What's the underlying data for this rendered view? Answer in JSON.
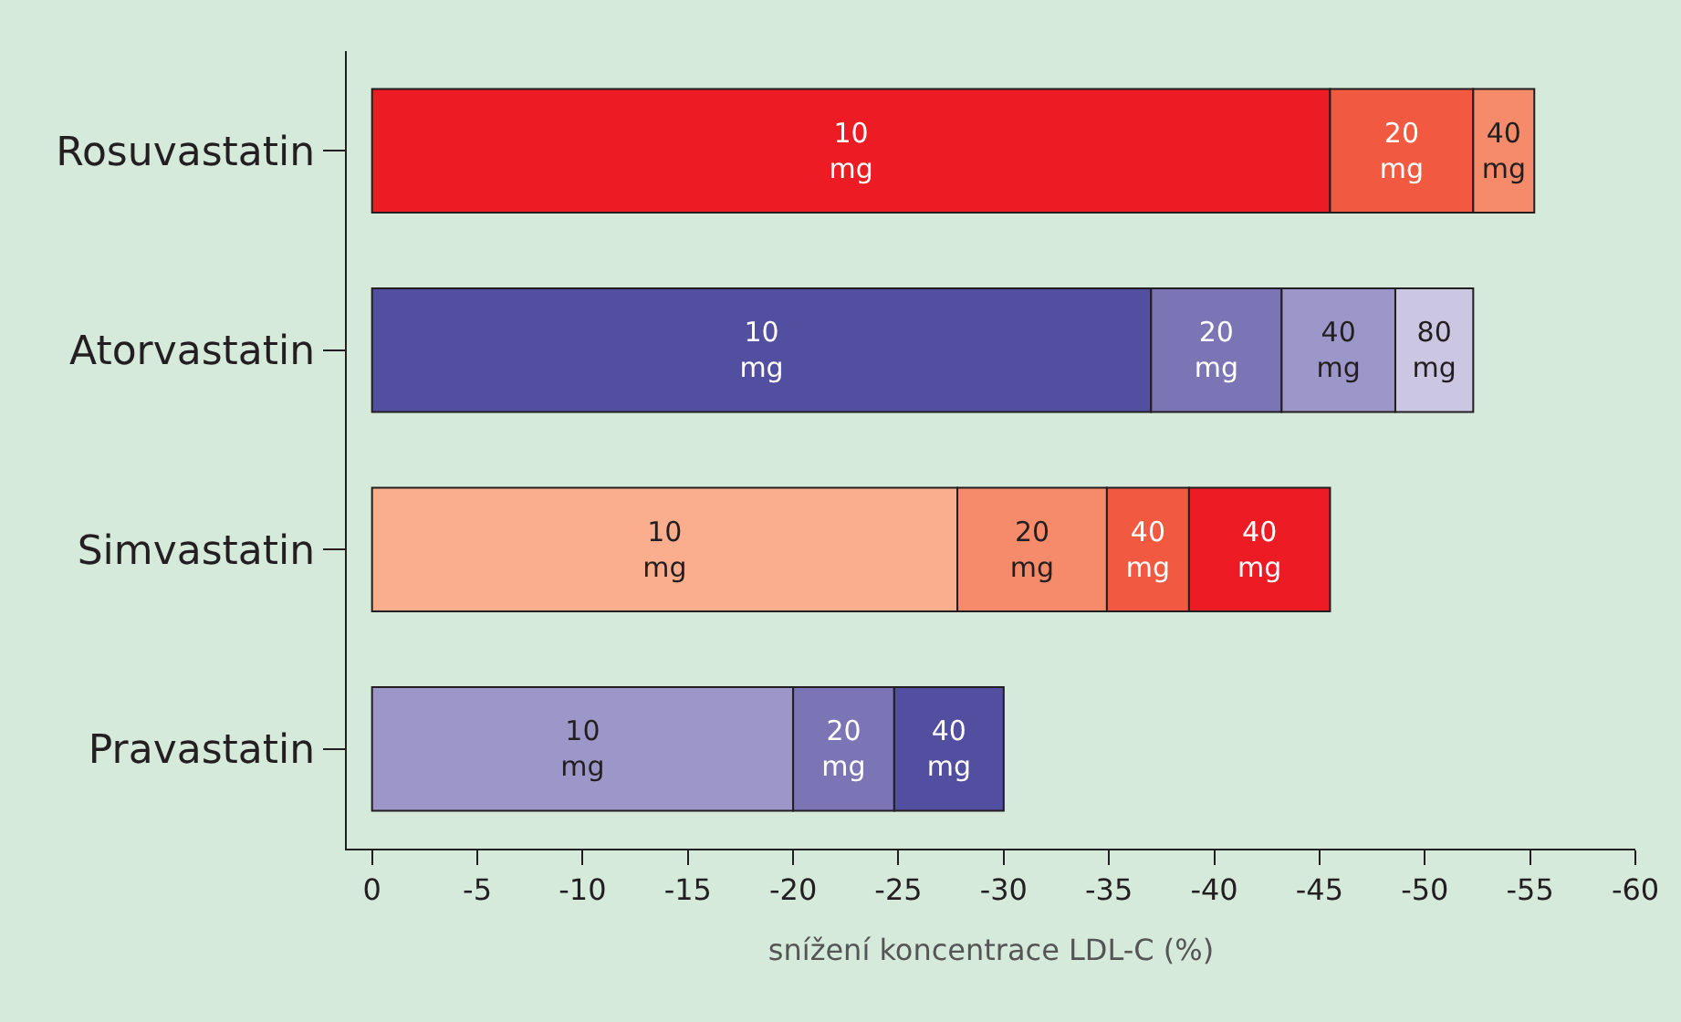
{
  "chart_data": {
    "type": "bar",
    "orientation": "horizontal",
    "stacked": true,
    "xlabel": "snížení koncentrace LDL-C (%)",
    "categories": [
      "Rosuvastatin",
      "Atorvastatin",
      "Simvastatin",
      "Pravastatin"
    ],
    "xlim": [
      1.2,
      -60
    ],
    "xticks": [
      0,
      -5,
      -10,
      -15,
      -20,
      -25,
      -30,
      -35,
      -40,
      -45,
      -50,
      -55,
      -60
    ],
    "grid": false,
    "legend": false,
    "series": [
      {
        "name": "10\nmg",
        "color": "#ed1c24",
        "values": [
          -45.5,
          null,
          null,
          null
        ]
      },
      {
        "name": "20\nmg",
        "color": "#f15a40",
        "values": [
          -6.8,
          null,
          null,
          null
        ]
      },
      {
        "name": "40\nmg",
        "color": "#f58b6a",
        "values": [
          -2.9,
          null,
          null,
          null
        ]
      },
      {
        "name": "10\nmg",
        "color": "#524ea0",
        "values": [
          null,
          -37.0,
          null,
          null
        ]
      },
      {
        "name": "20\nmg",
        "color": "#7b74b5",
        "values": [
          null,
          -6.2,
          null,
          null
        ]
      },
      {
        "name": "40\nmg",
        "color": "#9d97c9",
        "values": [
          null,
          -5.4,
          null,
          null
        ]
      },
      {
        "name": "80\nmg",
        "color": "#cbc7e3",
        "values": [
          null,
          -3.7,
          null,
          null
        ]
      },
      {
        "name": "10\nmg",
        "color": "#fbae8e",
        "values": [
          null,
          null,
          -27.8,
          null
        ]
      },
      {
        "name": "20\nmg",
        "color": "#f58b6a",
        "values": [
          null,
          null,
          -7.1,
          null
        ]
      },
      {
        "name": "40\nmg",
        "color": "#f15a40",
        "values": [
          null,
          null,
          -3.9,
          null
        ]
      },
      {
        "name": "40\nmg",
        "color": "#ed1c24",
        "values": [
          null,
          null,
          -6.7,
          null
        ]
      },
      {
        "name": "10\nmg",
        "color": "#9d97c9",
        "values": [
          null,
          null,
          null,
          -20.0
        ]
      },
      {
        "name": "20\nmg",
        "color": "#7b74b5",
        "values": [
          null,
          null,
          null,
          -4.8
        ]
      },
      {
        "name": "40\nmg",
        "color": "#524ea0",
        "values": [
          null,
          null,
          null,
          -5.2
        ]
      }
    ]
  }
}
